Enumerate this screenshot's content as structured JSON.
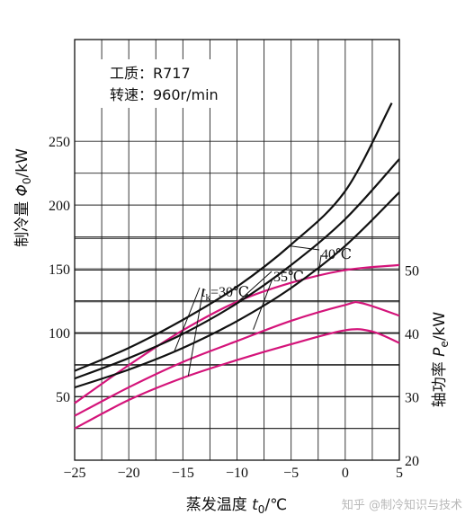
{
  "chart_data": {
    "type": "line",
    "xlabel": "蒸发温度 t0/℃",
    "xlabel_parts": {
      "text": "蒸发温度 ",
      "var": "t",
      "sub": "0",
      "unit": "/℃"
    },
    "ylabel_left": "制冷量 Φ0/kW",
    "ylabel_left_parts": {
      "text": "制冷量 ",
      "var": "Φ",
      "sub": "0",
      "unit": "/kW"
    },
    "ylabel_right": "轴功率 Pe/kW",
    "ylabel_right_parts": {
      "text": "轴功率 ",
      "var": "P",
      "sub": "e",
      "unit": "/kW"
    },
    "xlim": [
      -25,
      5
    ],
    "ylim_left": [
      0,
      280
    ],
    "ylim_right": [
      20,
      58
    ],
    "x_ticks": [
      "−25",
      "−20",
      "−15",
      "−10",
      "−5",
      "0",
      "5"
    ],
    "x_tick_values": [
      -25,
      -20,
      -15,
      -10,
      -5,
      0,
      5
    ],
    "y_left_ticks": [
      "50",
      "100",
      "150",
      "200",
      "250"
    ],
    "y_left_tick_values": [
      50,
      100,
      150,
      200,
      250
    ],
    "y_right_ticks": [
      "20",
      "30",
      "40",
      "50"
    ],
    "y_right_tick_values": [
      20,
      30,
      40,
      50
    ],
    "grid": true,
    "notes": [
      "工质：R717",
      "转速：960r/min"
    ],
    "condensing_labels": {
      "tk_30": "t k=30℃",
      "tk_30_parts": {
        "var": "t",
        "sub": "k",
        "rest": "=30℃"
      },
      "tk_35": "35℃",
      "tk_40": "40℃"
    },
    "cooling_capacity_series": [
      {
        "tk": 30,
        "x": [
          -25,
          -20,
          -15,
          -10,
          -5,
          0,
          5
        ],
        "y": [
          57,
          71,
          88,
          109,
          135,
          168,
          210
        ],
        "color": "#111111"
      },
      {
        "tk": 35,
        "x": [
          -25,
          -20,
          -15,
          -10,
          -5,
          0,
          5
        ],
        "y": [
          64,
          80,
          99,
          123,
          153,
          189,
          236
        ],
        "color": "#111111"
      },
      {
        "tk": 40,
        "x": [
          -25,
          -20,
          -15,
          -10,
          -5,
          0,
          4.3
        ],
        "y": [
          70,
          88,
          110,
          136,
          169,
          211,
          280
        ],
        "color": "#111111"
      }
    ],
    "shaft_power_series": [
      {
        "tk": 30,
        "x": [
          -25,
          -20,
          -15,
          -10,
          -5,
          0,
          2.5,
          5
        ],
        "y": [
          25.0,
          29.5,
          33.0,
          35.8,
          38.3,
          40.5,
          40.3,
          38.5
        ],
        "color": "#d4147a"
      },
      {
        "tk": 35,
        "x": [
          -25,
          -20,
          -15,
          -10,
          -5,
          0,
          1.5,
          5
        ],
        "y": [
          27.0,
          31.5,
          35.5,
          38.8,
          42.0,
          44.5,
          44.8,
          42.8
        ],
        "color": "#d4147a"
      },
      {
        "tk": 40,
        "x": [
          -25,
          -20,
          -15,
          -10,
          -5,
          0,
          5
        ],
        "y": [
          29.0,
          35.0,
          40.5,
          45.0,
          48.0,
          50.0,
          50.8
        ],
        "color": "#d4147a"
      }
    ]
  },
  "watermark": "知乎 @制冷知识与技术"
}
